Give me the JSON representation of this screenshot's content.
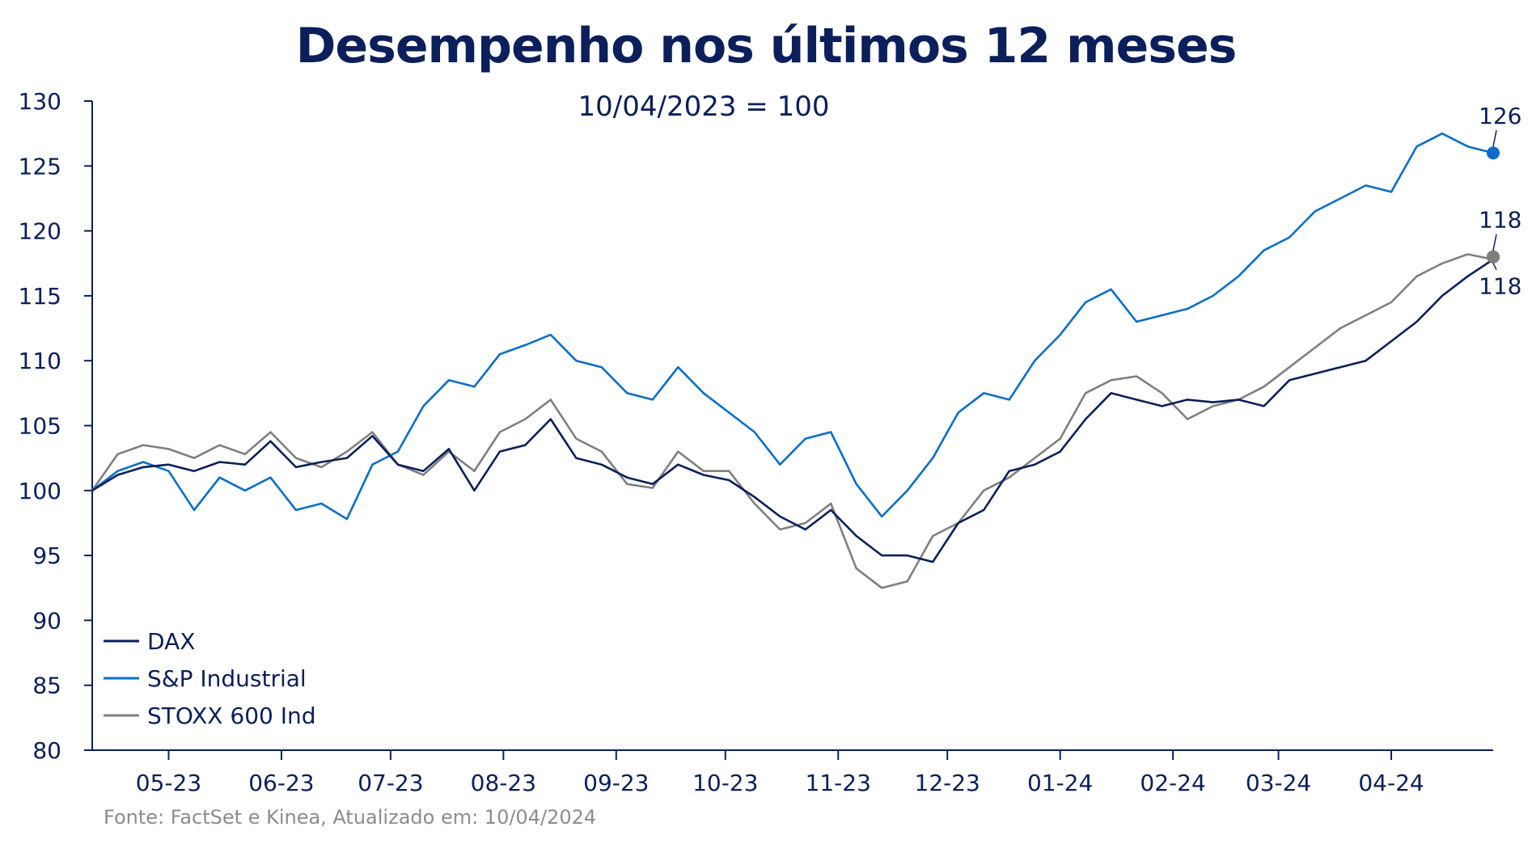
{
  "chart_data": {
    "type": "line",
    "title": "Desempenho nos últimos 12 meses",
    "subtitle": "10/04/2023 = 100",
    "source": "Fonte: FactSet e Kinea, Atualizado em: 10/04/2024",
    "xlabel": "",
    "ylabel": "",
    "ylim": [
      80,
      130
    ],
    "yticks": [
      80,
      85,
      90,
      95,
      100,
      105,
      110,
      115,
      120,
      125,
      130
    ],
    "xrange": [
      "2023-04-10",
      "2024-04-10"
    ],
    "xticks": [
      {
        "date": "2023-05-01",
        "label": "05-23"
      },
      {
        "date": "2023-06-01",
        "label": "06-23"
      },
      {
        "date": "2023-07-01",
        "label": "07-23"
      },
      {
        "date": "2023-08-01",
        "label": "08-23"
      },
      {
        "date": "2023-09-01",
        "label": "09-23"
      },
      {
        "date": "2023-10-01",
        "label": "10-23"
      },
      {
        "date": "2023-11-01",
        "label": "11-23"
      },
      {
        "date": "2023-12-01",
        "label": "12-23"
      },
      {
        "date": "2024-01-01",
        "label": "01-24"
      },
      {
        "date": "2024-02-01",
        "label": "02-24"
      },
      {
        "date": "2024-03-01",
        "label": "03-24"
      },
      {
        "date": "2024-04-01",
        "label": "04-24"
      }
    ],
    "grid": false,
    "legend_position": "bottom-left",
    "series": [
      {
        "name": "DAX",
        "color": "#0b1f5b",
        "end_value": 118,
        "end_label": "118",
        "points": [
          [
            "2023-04-10",
            100.0
          ],
          [
            "2023-04-17",
            101.2
          ],
          [
            "2023-04-24",
            101.8
          ],
          [
            "2023-05-01",
            102.0
          ],
          [
            "2023-05-08",
            101.5
          ],
          [
            "2023-05-15",
            102.2
          ],
          [
            "2023-05-22",
            102.0
          ],
          [
            "2023-05-29",
            103.8
          ],
          [
            "2023-06-05",
            101.8
          ],
          [
            "2023-06-12",
            102.2
          ],
          [
            "2023-06-19",
            102.5
          ],
          [
            "2023-06-26",
            104.2
          ],
          [
            "2023-07-03",
            102.0
          ],
          [
            "2023-07-10",
            101.5
          ],
          [
            "2023-07-17",
            103.2
          ],
          [
            "2023-07-24",
            100.0
          ],
          [
            "2023-07-31",
            103.0
          ],
          [
            "2023-08-07",
            103.5
          ],
          [
            "2023-08-14",
            105.5
          ],
          [
            "2023-08-21",
            102.5
          ],
          [
            "2023-08-28",
            102.0
          ],
          [
            "2023-09-04",
            101.0
          ],
          [
            "2023-09-11",
            100.5
          ],
          [
            "2023-09-18",
            102.0
          ],
          [
            "2023-09-25",
            101.2
          ],
          [
            "2023-10-02",
            100.8
          ],
          [
            "2023-10-09",
            99.5
          ],
          [
            "2023-10-16",
            98.0
          ],
          [
            "2023-10-23",
            97.0
          ],
          [
            "2023-10-30",
            98.5
          ],
          [
            "2023-11-06",
            96.5
          ],
          [
            "2023-11-13",
            95.0
          ],
          [
            "2023-11-20",
            95.0
          ],
          [
            "2023-11-27",
            94.5
          ],
          [
            "2023-12-04",
            97.5
          ],
          [
            "2023-12-11",
            98.5
          ],
          [
            "2023-12-18",
            101.5
          ],
          [
            "2023-12-25",
            102.0
          ],
          [
            "2024-01-01",
            103.0
          ],
          [
            "2024-01-08",
            105.5
          ],
          [
            "2024-01-15",
            107.5
          ],
          [
            "2024-01-22",
            107.0
          ],
          [
            "2024-01-29",
            106.5
          ],
          [
            "2024-02-05",
            107.0
          ],
          [
            "2024-02-12",
            106.8
          ],
          [
            "2024-02-19",
            107.0
          ],
          [
            "2024-02-26",
            106.5
          ],
          [
            "2024-03-04",
            108.5
          ],
          [
            "2024-03-11",
            109.0
          ],
          [
            "2024-03-18",
            109.5
          ],
          [
            "2024-03-25",
            110.0
          ],
          [
            "2024-04-01",
            111.5
          ],
          [
            "2024-04-08",
            113.0
          ],
          [
            "2024-04-15",
            115.0
          ],
          [
            "2024-04-22",
            116.5
          ],
          [
            "2024-04-29",
            117.8
          ]
        ]
      },
      {
        "name": "S&P Industrial",
        "color": "#0a6ec8",
        "end_value": 126,
        "end_label": "126",
        "points": [
          [
            "2023-04-10",
            100.0
          ],
          [
            "2023-04-17",
            101.5
          ],
          [
            "2023-04-24",
            102.2
          ],
          [
            "2023-05-01",
            101.5
          ],
          [
            "2023-05-08",
            98.5
          ],
          [
            "2023-05-15",
            101.0
          ],
          [
            "2023-05-22",
            100.0
          ],
          [
            "2023-05-29",
            101.0
          ],
          [
            "2023-06-05",
            98.5
          ],
          [
            "2023-06-12",
            99.0
          ],
          [
            "2023-06-19",
            97.8
          ],
          [
            "2023-06-26",
            102.0
          ],
          [
            "2023-07-03",
            103.0
          ],
          [
            "2023-07-10",
            106.5
          ],
          [
            "2023-07-17",
            108.5
          ],
          [
            "2023-07-24",
            108.0
          ],
          [
            "2023-07-31",
            110.5
          ],
          [
            "2023-08-07",
            111.2
          ],
          [
            "2023-08-14",
            112.0
          ],
          [
            "2023-08-21",
            110.0
          ],
          [
            "2023-08-28",
            109.5
          ],
          [
            "2023-09-04",
            107.5
          ],
          [
            "2023-09-11",
            107.0
          ],
          [
            "2023-09-18",
            109.5
          ],
          [
            "2023-09-25",
            107.5
          ],
          [
            "2023-10-02",
            106.0
          ],
          [
            "2023-10-09",
            104.5
          ],
          [
            "2023-10-16",
            102.0
          ],
          [
            "2023-10-23",
            104.0
          ],
          [
            "2023-10-30",
            104.5
          ],
          [
            "2023-11-06",
            100.5
          ],
          [
            "2023-11-13",
            98.0
          ],
          [
            "2023-11-20",
            100.0
          ],
          [
            "2023-11-27",
            102.5
          ],
          [
            "2023-12-04",
            106.0
          ],
          [
            "2023-12-11",
            107.5
          ],
          [
            "2023-12-18",
            107.0
          ],
          [
            "2023-12-25",
            110.0
          ],
          [
            "2024-01-01",
            112.0
          ],
          [
            "2024-01-08",
            114.5
          ],
          [
            "2024-01-15",
            115.5
          ],
          [
            "2024-01-22",
            113.0
          ],
          [
            "2024-01-29",
            113.5
          ],
          [
            "2024-02-05",
            114.0
          ],
          [
            "2024-02-12",
            115.0
          ],
          [
            "2024-02-19",
            116.5
          ],
          [
            "2024-02-26",
            118.5
          ],
          [
            "2024-03-04",
            119.5
          ],
          [
            "2024-03-11",
            121.5
          ],
          [
            "2024-03-18",
            122.5
          ],
          [
            "2024-03-25",
            123.5
          ],
          [
            "2024-04-01",
            123.0
          ],
          [
            "2024-04-08",
            126.5
          ],
          [
            "2024-04-15",
            127.5
          ],
          [
            "2024-04-22",
            126.5
          ],
          [
            "2024-04-29",
            126.0
          ]
        ]
      },
      {
        "name": "STOXX 600 Ind",
        "color": "#7f7f7f",
        "end_value": 118,
        "end_label": "118",
        "points": [
          [
            "2023-04-10",
            100.0
          ],
          [
            "2023-04-17",
            102.8
          ],
          [
            "2023-04-24",
            103.5
          ],
          [
            "2023-05-01",
            103.2
          ],
          [
            "2023-05-08",
            102.5
          ],
          [
            "2023-05-15",
            103.5
          ],
          [
            "2023-05-22",
            102.8
          ],
          [
            "2023-05-29",
            104.5
          ],
          [
            "2023-06-05",
            102.5
          ],
          [
            "2023-06-12",
            101.8
          ],
          [
            "2023-06-19",
            103.0
          ],
          [
            "2023-06-26",
            104.5
          ],
          [
            "2023-07-03",
            102.0
          ],
          [
            "2023-07-10",
            101.2
          ],
          [
            "2023-07-17",
            103.0
          ],
          [
            "2023-07-24",
            101.5
          ],
          [
            "2023-07-31",
            104.5
          ],
          [
            "2023-08-07",
            105.5
          ],
          [
            "2023-08-14",
            107.0
          ],
          [
            "2023-08-21",
            104.0
          ],
          [
            "2023-08-28",
            103.0
          ],
          [
            "2023-09-04",
            100.5
          ],
          [
            "2023-09-11",
            100.2
          ],
          [
            "2023-09-18",
            103.0
          ],
          [
            "2023-09-25",
            101.5
          ],
          [
            "2023-10-02",
            101.5
          ],
          [
            "2023-10-09",
            99.0
          ],
          [
            "2023-10-16",
            97.0
          ],
          [
            "2023-10-23",
            97.5
          ],
          [
            "2023-10-30",
            99.0
          ],
          [
            "2023-11-06",
            94.0
          ],
          [
            "2023-11-13",
            92.5
          ],
          [
            "2023-11-20",
            93.0
          ],
          [
            "2023-11-27",
            96.5
          ],
          [
            "2023-12-04",
            97.5
          ],
          [
            "2023-12-11",
            100.0
          ],
          [
            "2023-12-18",
            101.0
          ],
          [
            "2023-12-25",
            102.5
          ],
          [
            "2024-01-01",
            104.0
          ],
          [
            "2024-01-08",
            107.5
          ],
          [
            "2024-01-15",
            108.5
          ],
          [
            "2024-01-22",
            108.8
          ],
          [
            "2024-01-29",
            107.5
          ],
          [
            "2024-02-05",
            105.5
          ],
          [
            "2024-02-12",
            106.5
          ],
          [
            "2024-02-19",
            107.0
          ],
          [
            "2024-02-26",
            108.0
          ],
          [
            "2024-03-04",
            109.5
          ],
          [
            "2024-03-11",
            111.0
          ],
          [
            "2024-03-18",
            112.5
          ],
          [
            "2024-03-25",
            113.5
          ],
          [
            "2024-04-01",
            114.5
          ],
          [
            "2024-04-08",
            116.5
          ],
          [
            "2024-04-15",
            117.5
          ],
          [
            "2024-04-22",
            118.2
          ],
          [
            "2024-04-29",
            117.8
          ]
        ]
      }
    ]
  }
}
